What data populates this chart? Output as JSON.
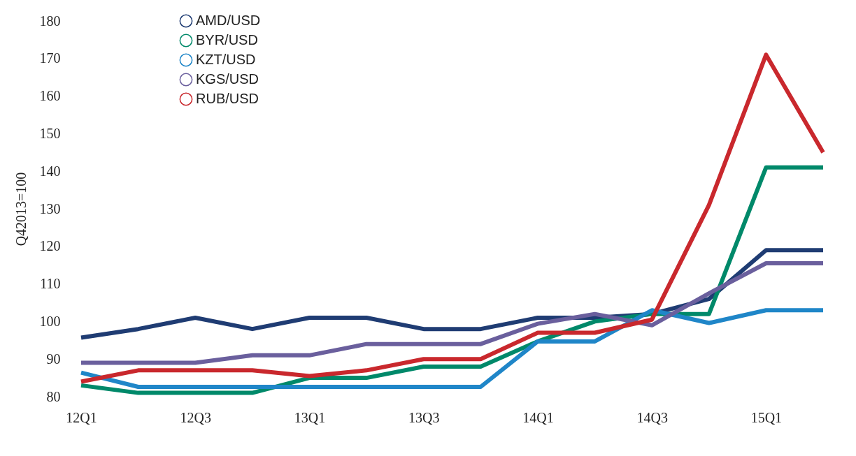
{
  "chart_data": {
    "type": "line",
    "ylabel": "Q42013=100",
    "categories": [
      "12Q1",
      null,
      "12Q3",
      null,
      "13Q1",
      null,
      "13Q3",
      null,
      "14Q1",
      null,
      "14Q3",
      null,
      "15Q1",
      null
    ],
    "series": [
      {
        "name": "AMD/USD",
        "color": "#1f3c73",
        "values": [
          95.7,
          98,
          101,
          98,
          101,
          101,
          98,
          98,
          101,
          101,
          102,
          106,
          119,
          119
        ]
      },
      {
        "name": "BYR/USD",
        "color": "#00896a",
        "values": [
          83,
          81,
          81,
          81,
          85,
          85,
          88,
          88,
          94.7,
          100,
          102,
          102,
          141,
          141
        ]
      },
      {
        "name": "KZT/USD",
        "color": "#1f86c8",
        "values": [
          86.4,
          82.6,
          82.6,
          82.6,
          82.6,
          82.6,
          82.6,
          82.6,
          94.7,
          94.7,
          103,
          99.6,
          103,
          103
        ]
      },
      {
        "name": "KGS/USD",
        "color": "#6a5f9d",
        "values": [
          89,
          89,
          89,
          91,
          91,
          94,
          94,
          94,
          99.4,
          102,
          99,
          107.5,
          115.5,
          115.5
        ]
      },
      {
        "name": "RUB/USD",
        "color": "#c9282d",
        "values": [
          84,
          87,
          87,
          87,
          85.5,
          87,
          90,
          90,
          97,
          97,
          100.5,
          131,
          171,
          145
        ]
      }
    ],
    "ylim": [
      80,
      180
    ],
    "yticks": [
      80,
      90,
      100,
      110,
      120,
      130,
      140,
      150,
      160,
      170,
      180
    ],
    "grid": false,
    "legend": "top left",
    "line_style": "solid",
    "marker": "none"
  }
}
